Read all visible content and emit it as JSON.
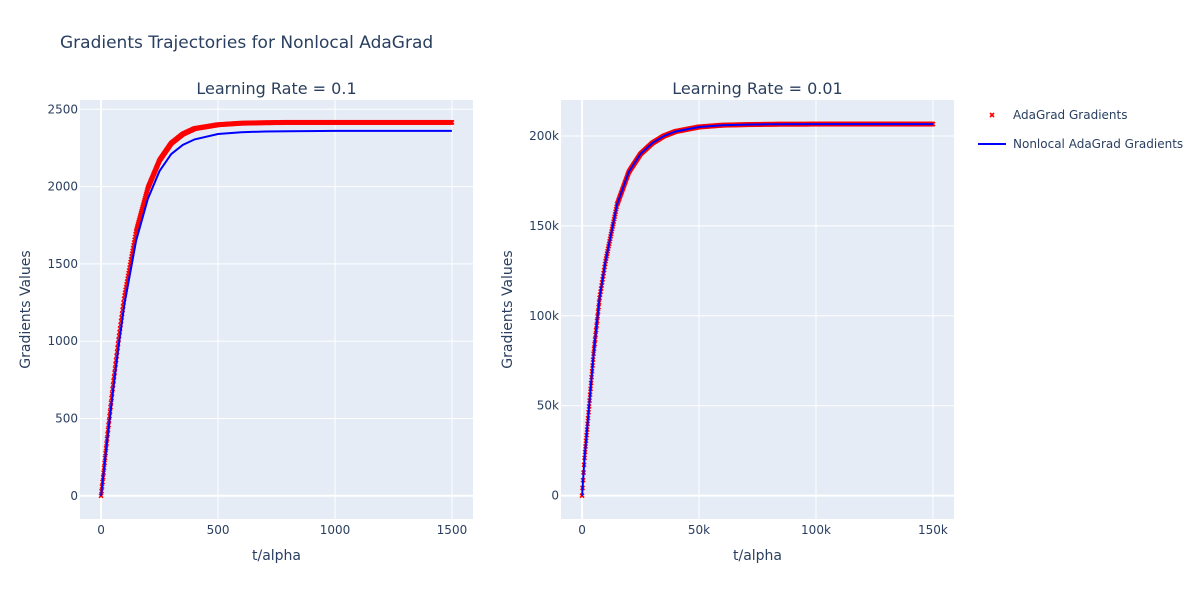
{
  "title": "Gradients Trajectories for Nonlocal AdaGrad",
  "legend": {
    "position": "top-right",
    "items": [
      {
        "label": "AdaGrad Gradients",
        "color": "#ff0000",
        "symbol": "x-marker"
      },
      {
        "label": "Nonlocal AdaGrad Gradients",
        "color": "#0000ff",
        "symbol": "line"
      }
    ]
  },
  "chart_data": [
    {
      "type": "scatter",
      "title": "Learning Rate = 0.1",
      "xlabel": "t/alpha",
      "ylabel": "Gradients Values",
      "xlim": [
        -90,
        1590
      ],
      "ylim": [
        -150,
        2560
      ],
      "x_ticks": [
        0,
        500,
        1000,
        1500
      ],
      "x_tick_labels": [
        "0",
        "500",
        "1000",
        "1500"
      ],
      "y_ticks": [
        0,
        500,
        1000,
        1500,
        2000,
        2500
      ],
      "y_tick_labels": [
        "0",
        "500",
        "1000",
        "1500",
        "2000",
        "2500"
      ],
      "grid": true,
      "series": [
        {
          "name": "AdaGrad Gradients",
          "mode": "markers",
          "color": "#ff0000",
          "x": [
            0,
            10,
            25,
            50,
            75,
            100,
            150,
            200,
            250,
            300,
            350,
            400,
            500,
            600,
            700,
            800,
            1000,
            1200,
            1500
          ],
          "y": [
            0,
            140,
            360,
            700,
            1010,
            1290,
            1710,
            1990,
            2170,
            2280,
            2340,
            2375,
            2400,
            2410,
            2413,
            2415,
            2415,
            2415,
            2415
          ]
        },
        {
          "name": "Nonlocal AdaGrad Gradients",
          "mode": "line",
          "color": "#0000ff",
          "x": [
            0,
            10,
            25,
            50,
            75,
            100,
            150,
            200,
            250,
            300,
            350,
            400,
            500,
            600,
            700,
            800,
            1000,
            1200,
            1500
          ],
          "y": [
            0,
            135,
            345,
            670,
            970,
            1240,
            1650,
            1920,
            2100,
            2210,
            2270,
            2305,
            2340,
            2352,
            2356,
            2358,
            2360,
            2360,
            2360
          ]
        }
      ]
    },
    {
      "type": "scatter",
      "title": "Learning Rate = 0.01",
      "xlabel": "t/alpha",
      "ylabel": "Gradients Values",
      "xlim": [
        -9000,
        159000
      ],
      "ylim": [
        -13000,
        220000
      ],
      "x_ticks": [
        0,
        50000,
        100000,
        150000
      ],
      "x_tick_labels": [
        "0",
        "50k",
        "100k",
        "150k"
      ],
      "y_ticks": [
        0,
        50000,
        100000,
        150000,
        200000
      ],
      "y_tick_labels": [
        "0",
        "50k",
        "100k",
        "150k",
        "200k"
      ],
      "grid": true,
      "series": [
        {
          "name": "AdaGrad Gradients",
          "mode": "markers",
          "color": "#ff0000",
          "x": [
            0,
            1000,
            2500,
            5000,
            7500,
            10000,
            15000,
            20000,
            25000,
            30000,
            35000,
            40000,
            50000,
            60000,
            70000,
            80000,
            100000,
            120000,
            150000
          ],
          "y": [
            0,
            20000,
            42000,
            80000,
            110000,
            130000,
            162000,
            180000,
            190000,
            196000,
            200000,
            202500,
            205000,
            206000,
            206300,
            206500,
            206600,
            206600,
            206600
          ]
        },
        {
          "name": "Nonlocal AdaGrad Gradients",
          "mode": "line",
          "color": "#0000ff",
          "x": [
            0,
            1000,
            2500,
            5000,
            7500,
            10000,
            15000,
            20000,
            25000,
            30000,
            35000,
            40000,
            50000,
            60000,
            70000,
            80000,
            100000,
            120000,
            150000
          ],
          "y": [
            0,
            20000,
            42000,
            80000,
            110000,
            130000,
            162000,
            180000,
            190000,
            196000,
            200000,
            202500,
            205000,
            206000,
            206300,
            206500,
            206600,
            206600,
            206600
          ]
        }
      ]
    }
  ]
}
